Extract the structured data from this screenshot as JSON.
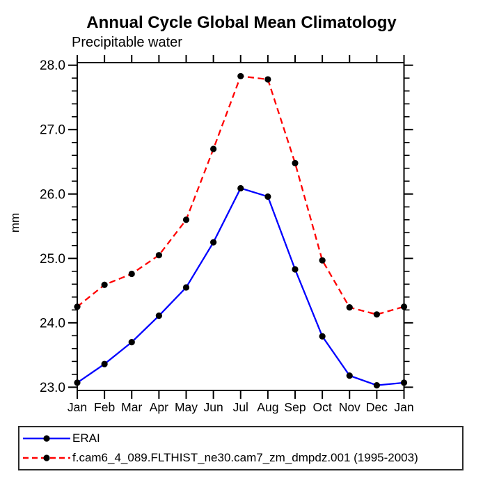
{
  "title": "Annual Cycle Global Mean Climatology",
  "subtitle": "Precipitable water",
  "y_axis_label": "mm",
  "legend": {
    "items": [
      {
        "label": "ERAI"
      },
      {
        "label": "f.cam6_4_089.FLTHIST_ne30.cam7_zm_dmpdz.001 (1995-2003)"
      }
    ]
  },
  "chart_data": {
    "type": "line",
    "title": "Annual Cycle Global Mean Climatology",
    "subtitle": "Precipitable water",
    "xlabel": "",
    "ylabel": "mm",
    "categories": [
      "Jan",
      "Feb",
      "Mar",
      "Apr",
      "May",
      "Jun",
      "Jul",
      "Aug",
      "Sep",
      "Oct",
      "Nov",
      "Dec",
      "Jan"
    ],
    "series": [
      {
        "name": "ERAI",
        "color": "#0000ff",
        "line_style": "solid",
        "marker": "filled-circle",
        "marker_color": "#000000",
        "values": [
          23.07,
          23.36,
          23.7,
          24.11,
          24.55,
          25.25,
          26.09,
          25.96,
          24.83,
          23.79,
          23.18,
          23.03,
          23.07
        ]
      },
      {
        "name": "f.cam6_4_089.FLTHIST_ne30.cam7_zm_dmpdz.001 (1995-2003)",
        "color": "#ff0000",
        "line_style": "dashed",
        "marker": "filled-circle",
        "marker_color": "#000000",
        "values": [
          24.25,
          24.59,
          24.76,
          25.05,
          25.6,
          26.7,
          27.83,
          27.78,
          26.48,
          24.97,
          24.24,
          24.13,
          24.25
        ]
      }
    ],
    "ylim": [
      22.95,
      28.04
    ],
    "yticks": [
      23,
      24,
      25,
      26,
      27,
      28
    ],
    "ytick_labels": [
      "23.0",
      "24.0",
      "25.0",
      "26.0",
      "27.0",
      "28.0"
    ],
    "y_minor_step": 0.2,
    "grid": false,
    "tick_direction": "out",
    "legend_position": "bottom-box",
    "axis_color": "#000000",
    "background_color": "#ffffff"
  }
}
